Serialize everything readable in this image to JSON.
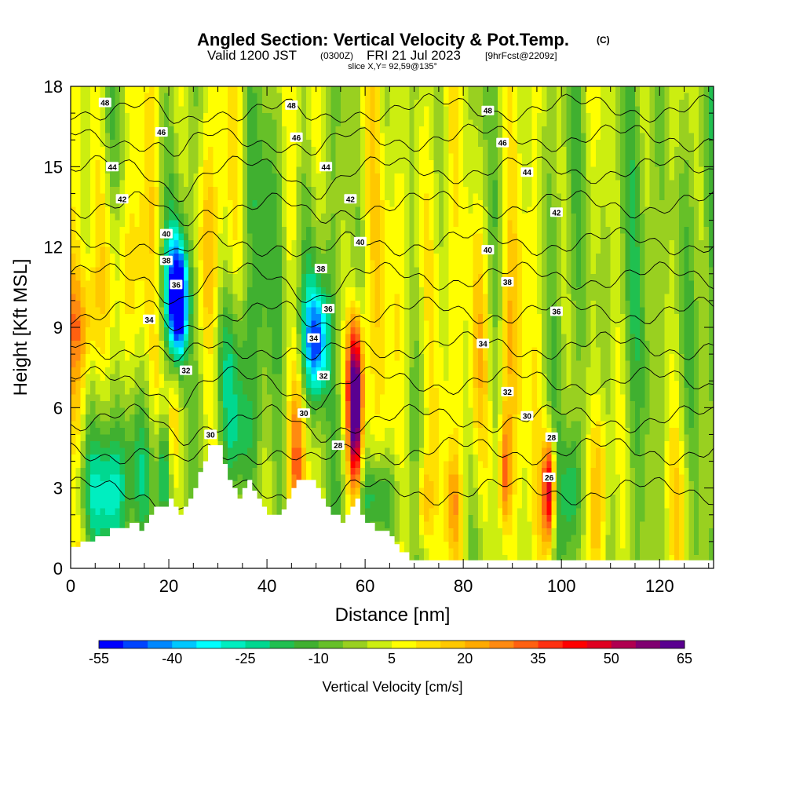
{
  "header": {
    "title": "Angled Section: Vertical Velocity & Pot.Temp.",
    "title_mark": "(C)",
    "valid_prefix": "Valid 1200 JST",
    "valid_utc": "(0300Z)",
    "valid_date": "FRI 21 Jul 2023",
    "forecast": "[9hrFcst@2209z]",
    "slice": "slice X,Y= 92,59@135°"
  },
  "chart_data": {
    "type": "heatmap",
    "xlabel": "Distance [nm]",
    "ylabel": "Height [Kft MSL]",
    "xlim": [
      0,
      131
    ],
    "ylim": [
      0,
      18
    ],
    "x_ticks": [
      0,
      20,
      40,
      60,
      80,
      100,
      120
    ],
    "y_ticks": [
      0,
      3,
      6,
      9,
      12,
      15,
      18
    ],
    "colorbar": {
      "title": "Vertical Velocity [cm/s]",
      "min": -55,
      "max": 65,
      "step": 5,
      "tick_values": [
        -55,
        -40,
        -25,
        -10,
        5,
        20,
        35,
        50,
        65
      ],
      "colors": [
        "#0000ff",
        "#0044ff",
        "#0088ff",
        "#00c8ff",
        "#00ffff",
        "#00eec0",
        "#00d890",
        "#20c050",
        "#40b030",
        "#66c028",
        "#99d020",
        "#ccee10",
        "#ffff00",
        "#ffe000",
        "#ffc800",
        "#ffaa00",
        "#ff8a10",
        "#ff6010",
        "#ff3010",
        "#ff0000",
        "#e00020",
        "#b00050",
        "#800070",
        "#5a0090"
      ]
    },
    "pot_temp_contours": {
      "units": "C",
      "levels": [
        26,
        28,
        30,
        32,
        34,
        36,
        38,
        40,
        42,
        44,
        46,
        48
      ],
      "labels": [
        {
          "text": "48",
          "x": 7,
          "y": 17.4
        },
        {
          "text": "48",
          "x": 45,
          "y": 17.3
        },
        {
          "text": "48",
          "x": 85,
          "y": 17.1
        },
        {
          "text": "46",
          "x": 18.5,
          "y": 16.3
        },
        {
          "text": "46",
          "x": 46,
          "y": 16.1
        },
        {
          "text": "46",
          "x": 88,
          "y": 15.9
        },
        {
          "text": "44",
          "x": 8.5,
          "y": 15.0
        },
        {
          "text": "44",
          "x": 52,
          "y": 15.0
        },
        {
          "text": "44",
          "x": 93,
          "y": 14.8
        },
        {
          "text": "42",
          "x": 10.5,
          "y": 13.8
        },
        {
          "text": "42",
          "x": 57,
          "y": 13.8
        },
        {
          "text": "42",
          "x": 99,
          "y": 13.3
        },
        {
          "text": "40",
          "x": 19.5,
          "y": 12.5
        },
        {
          "text": "40",
          "x": 59,
          "y": 12.2
        },
        {
          "text": "40",
          "x": 85,
          "y": 11.9
        },
        {
          "text": "38",
          "x": 19.5,
          "y": 11.5
        },
        {
          "text": "38",
          "x": 51,
          "y": 11.2
        },
        {
          "text": "38",
          "x": 89,
          "y": 10.7
        },
        {
          "text": "36",
          "x": 21.5,
          "y": 10.6
        },
        {
          "text": "36",
          "x": 52.5,
          "y": 9.7
        },
        {
          "text": "36",
          "x": 99,
          "y": 9.6
        },
        {
          "text": "34",
          "x": 16,
          "y": 9.3
        },
        {
          "text": "34",
          "x": 49.5,
          "y": 8.6
        },
        {
          "text": "34",
          "x": 84,
          "y": 8.4
        },
        {
          "text": "32",
          "x": 23.5,
          "y": 7.4
        },
        {
          "text": "32",
          "x": 51.5,
          "y": 7.2
        },
        {
          "text": "32",
          "x": 89,
          "y": 6.6
        },
        {
          "text": "30",
          "x": 47.5,
          "y": 5.8
        },
        {
          "text": "30",
          "x": 93,
          "y": 5.7
        },
        {
          "text": "30",
          "x": 28.5,
          "y": 5.0
        },
        {
          "text": "28",
          "x": 54.5,
          "y": 4.6
        },
        {
          "text": "28",
          "x": 98,
          "y": 4.9
        },
        {
          "text": "26",
          "x": 97.5,
          "y": 3.4
        }
      ]
    },
    "terrain_kft": [
      [
        0,
        0.8
      ],
      [
        2,
        0.8
      ],
      [
        2,
        1.0
      ],
      [
        5,
        1.0
      ],
      [
        5,
        1.2
      ],
      [
        8,
        1.2
      ],
      [
        8,
        1.5
      ],
      [
        12,
        1.5
      ],
      [
        12,
        1.7
      ],
      [
        14,
        1.7
      ],
      [
        14,
        1.4
      ],
      [
        15,
        1.4
      ],
      [
        15,
        1.7
      ],
      [
        16,
        1.7
      ],
      [
        16,
        2.0
      ],
      [
        17,
        2.0
      ],
      [
        17,
        2.3
      ],
      [
        20,
        2.3
      ],
      [
        20,
        2.6
      ],
      [
        21,
        2.6
      ],
      [
        21,
        2.3
      ],
      [
        22,
        2.3
      ],
      [
        22,
        2.0
      ],
      [
        23,
        2.0
      ],
      [
        23,
        2.3
      ],
      [
        24,
        2.3
      ],
      [
        24,
        2.6
      ],
      [
        25,
        2.6
      ],
      [
        25,
        3.0
      ],
      [
        26,
        3.0
      ],
      [
        26,
        3.6
      ],
      [
        27,
        3.6
      ],
      [
        27,
        4.0
      ],
      [
        28,
        4.0
      ],
      [
        28,
        4.6
      ],
      [
        31,
        4.6
      ],
      [
        31,
        3.9
      ],
      [
        32,
        3.9
      ],
      [
        32,
        3.3
      ],
      [
        33,
        3.3
      ],
      [
        33,
        3.0
      ],
      [
        34,
        3.0
      ],
      [
        34,
        2.6
      ],
      [
        35,
        2.6
      ],
      [
        35,
        3.0
      ],
      [
        36,
        3.0
      ],
      [
        36,
        3.3
      ],
      [
        37,
        3.3
      ],
      [
        37,
        2.9
      ],
      [
        38,
        2.9
      ],
      [
        38,
        2.6
      ],
      [
        39,
        2.6
      ],
      [
        39,
        2.3
      ],
      [
        40,
        2.3
      ],
      [
        40,
        2.0
      ],
      [
        43,
        2.0
      ],
      [
        43,
        2.2
      ],
      [
        44,
        2.2
      ],
      [
        44,
        2.6
      ],
      [
        45,
        2.6
      ],
      [
        45,
        3.0
      ],
      [
        46,
        3.0
      ],
      [
        46,
        3.3
      ],
      [
        50,
        3.3
      ],
      [
        50,
        3.0
      ],
      [
        51,
        3.0
      ],
      [
        51,
        2.6
      ],
      [
        52,
        2.6
      ],
      [
        52,
        2.3
      ],
      [
        53,
        2.3
      ],
      [
        53,
        2.0
      ],
      [
        55,
        2.0
      ],
      [
        55,
        1.7
      ],
      [
        56,
        1.7
      ],
      [
        56,
        2.0
      ],
      [
        57,
        2.0
      ],
      [
        57,
        2.3
      ],
      [
        58,
        2.3
      ],
      [
        58,
        2.6
      ],
      [
        59,
        2.6
      ],
      [
        59,
        2.0
      ],
      [
        60,
        2.0
      ],
      [
        60,
        1.7
      ],
      [
        62,
        1.7
      ],
      [
        62,
        1.4
      ],
      [
        65,
        1.4
      ],
      [
        65,
        1.2
      ],
      [
        66,
        1.2
      ],
      [
        66,
        0.9
      ],
      [
        67,
        0.9
      ],
      [
        67,
        0.6
      ],
      [
        69,
        0.6
      ],
      [
        69,
        0.3
      ],
      [
        131,
        0.3
      ]
    ]
  }
}
